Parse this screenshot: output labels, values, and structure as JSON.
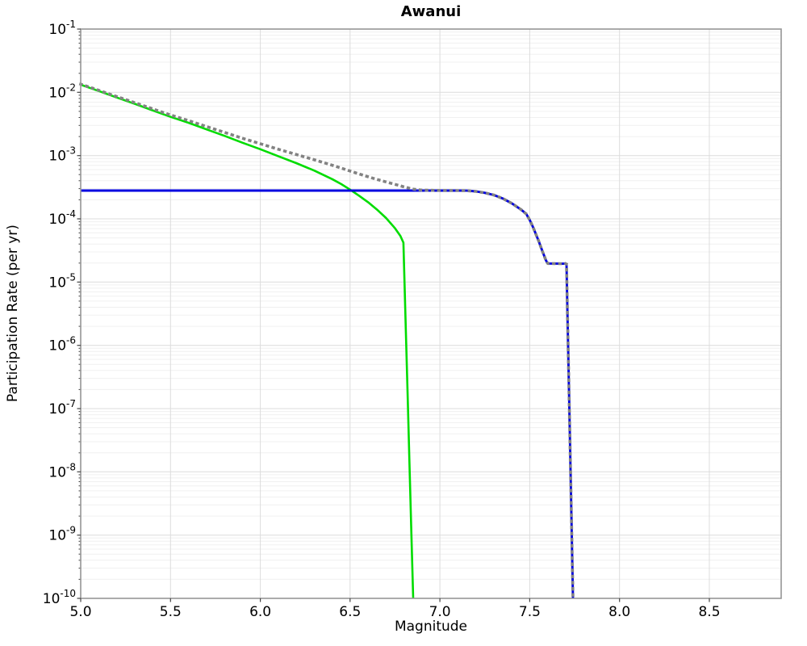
{
  "figure": {
    "background_color": "#ffffff",
    "title": "Awanui",
    "x_axis_title": "Magnitude",
    "y_axis_title": "Participation Rate (per yr)"
  },
  "chart_data": {
    "type": "line",
    "title": "Awanui",
    "xlabel": "Magnitude",
    "ylabel": "Participation Rate (per yr)",
    "x_scale": "linear",
    "y_scale": "log",
    "xlim": [
      5.0,
      8.9
    ],
    "ylim": [
      1e-10,
      0.1
    ],
    "grid": true,
    "legend": "none",
    "x_tick_labels": [
      "5.0",
      "5.5",
      "6.0",
      "6.5",
      "7.0",
      "7.5",
      "8.0",
      "8.5"
    ],
    "x_ticks": [
      5.0,
      5.5,
      6.0,
      6.5,
      7.0,
      7.5,
      8.0,
      8.5
    ],
    "y_tick_exponents": [
      -1,
      -2,
      -3,
      -4,
      -5,
      -6,
      -7,
      -8,
      -9,
      -10
    ],
    "y_tick_labels": [
      "10^-1",
      "10^-2",
      "10^-3",
      "10^-4",
      "10^-5",
      "10^-6",
      "10^-7",
      "10^-8",
      "10^-9",
      "10^-10"
    ],
    "colors": {
      "frame": "#969696",
      "tick": "#444444",
      "tick_label": "#000000",
      "grid_major": "#dcdcdc",
      "grid_minor": "#f0f0f0"
    },
    "series": [
      {
        "name": "solid-green",
        "color": "#00dc00",
        "style": "solid",
        "width": 2.6,
        "points": [
          [
            5.0,
            0.0132
          ],
          [
            5.1,
            0.0105
          ],
          [
            5.2,
            0.0083
          ],
          [
            5.3,
            0.0066
          ],
          [
            5.4,
            0.0052
          ],
          [
            5.5,
            0.0041
          ],
          [
            5.6,
            0.0033
          ],
          [
            5.7,
            0.0026
          ],
          [
            5.8,
            0.00205
          ],
          [
            5.9,
            0.0016
          ],
          [
            6.0,
            0.00126
          ],
          [
            6.1,
            0.00098
          ],
          [
            6.2,
            0.00076
          ],
          [
            6.3,
            0.00058
          ],
          [
            6.4,
            0.000425
          ],
          [
            6.45,
            0.000355
          ],
          [
            6.5,
            0.00029
          ],
          [
            6.55,
            0.000232
          ],
          [
            6.6,
            0.000183
          ],
          [
            6.65,
            0.00014
          ],
          [
            6.7,
            0.000103
          ],
          [
            6.75,
            7.1e-05
          ],
          [
            6.78,
            5.35e-05
          ],
          [
            6.797,
            4.2e-05
          ],
          [
            6.8,
            2e-05
          ],
          [
            6.81,
            1.9e-06
          ],
          [
            6.82,
            1.7e-07
          ],
          [
            6.83,
            1.5e-08
          ],
          [
            6.84,
            1.4e-09
          ],
          [
            6.851,
            1e-10
          ]
        ]
      },
      {
        "name": "solid-blue",
        "color": "#0000e0",
        "style": "solid",
        "width": 2.9,
        "points": [
          [
            5.0,
            0.00028
          ],
          [
            7.0,
            0.00028
          ],
          [
            7.1,
            0.00028
          ],
          [
            7.15,
            0.000279
          ],
          [
            7.2,
            0.000272
          ],
          [
            7.25,
            0.000258
          ],
          [
            7.3,
            0.000238
          ],
          [
            7.35,
            0.00021
          ],
          [
            7.4,
            0.000176
          ],
          [
            7.45,
            0.000141
          ],
          [
            7.48,
            0.00012
          ],
          [
            7.5,
            9.6e-05
          ],
          [
            7.52,
            7.2e-05
          ],
          [
            7.55,
            4.45e-05
          ],
          [
            7.57,
            3.1e-05
          ],
          [
            7.59,
            2.22e-05
          ],
          [
            7.6,
            1.97e-05
          ],
          [
            7.7,
            1.95e-05
          ],
          [
            7.705,
            1.92e-05
          ],
          [
            7.71,
            3.5e-06
          ],
          [
            7.72,
            1.2e-07
          ],
          [
            7.73,
            4.1e-09
          ],
          [
            7.741,
            1e-10
          ]
        ]
      },
      {
        "name": "dotted-gray",
        "color": "#828282",
        "style": "dotted",
        "width": 3.6,
        "points": [
          [
            5.0,
            0.01348
          ],
          [
            5.1,
            0.01078
          ],
          [
            5.2,
            0.00858
          ],
          [
            5.3,
            0.00688
          ],
          [
            5.4,
            0.00548
          ],
          [
            5.5,
            0.00438
          ],
          [
            5.6,
            0.00358
          ],
          [
            5.7,
            0.00288
          ],
          [
            5.8,
            0.00233
          ],
          [
            5.9,
            0.00188
          ],
          [
            6.0,
            0.00154
          ],
          [
            6.1,
            0.00126
          ],
          [
            6.2,
            0.00104
          ],
          [
            6.3,
            0.00086
          ],
          [
            6.4,
            0.000705
          ],
          [
            6.45,
            0.000635
          ],
          [
            6.5,
            0.00057
          ],
          [
            6.55,
            0.000512
          ],
          [
            6.6,
            0.000463
          ],
          [
            6.65,
            0.00042
          ],
          [
            6.7,
            0.000383
          ],
          [
            6.75,
            0.000351
          ],
          [
            6.8,
            0.00032
          ],
          [
            6.85,
            0.000295
          ],
          [
            6.9,
            0.000284
          ],
          [
            7.0,
            0.000281
          ],
          [
            7.1,
            0.00028
          ],
          [
            7.15,
            0.000279
          ],
          [
            7.2,
            0.000272
          ],
          [
            7.25,
            0.000258
          ],
          [
            7.3,
            0.000238
          ],
          [
            7.35,
            0.00021
          ],
          [
            7.4,
            0.000176
          ],
          [
            7.45,
            0.000141
          ],
          [
            7.48,
            0.00012
          ],
          [
            7.5,
            9.6e-05
          ],
          [
            7.52,
            7.2e-05
          ],
          [
            7.55,
            4.45e-05
          ],
          [
            7.57,
            3.1e-05
          ],
          [
            7.59,
            2.22e-05
          ],
          [
            7.6,
            1.97e-05
          ],
          [
            7.7,
            1.95e-05
          ],
          [
            7.705,
            1.92e-05
          ],
          [
            7.71,
            3.5e-06
          ],
          [
            7.72,
            1.2e-07
          ],
          [
            7.73,
            4.1e-09
          ],
          [
            7.741,
            1e-10
          ]
        ]
      }
    ]
  }
}
